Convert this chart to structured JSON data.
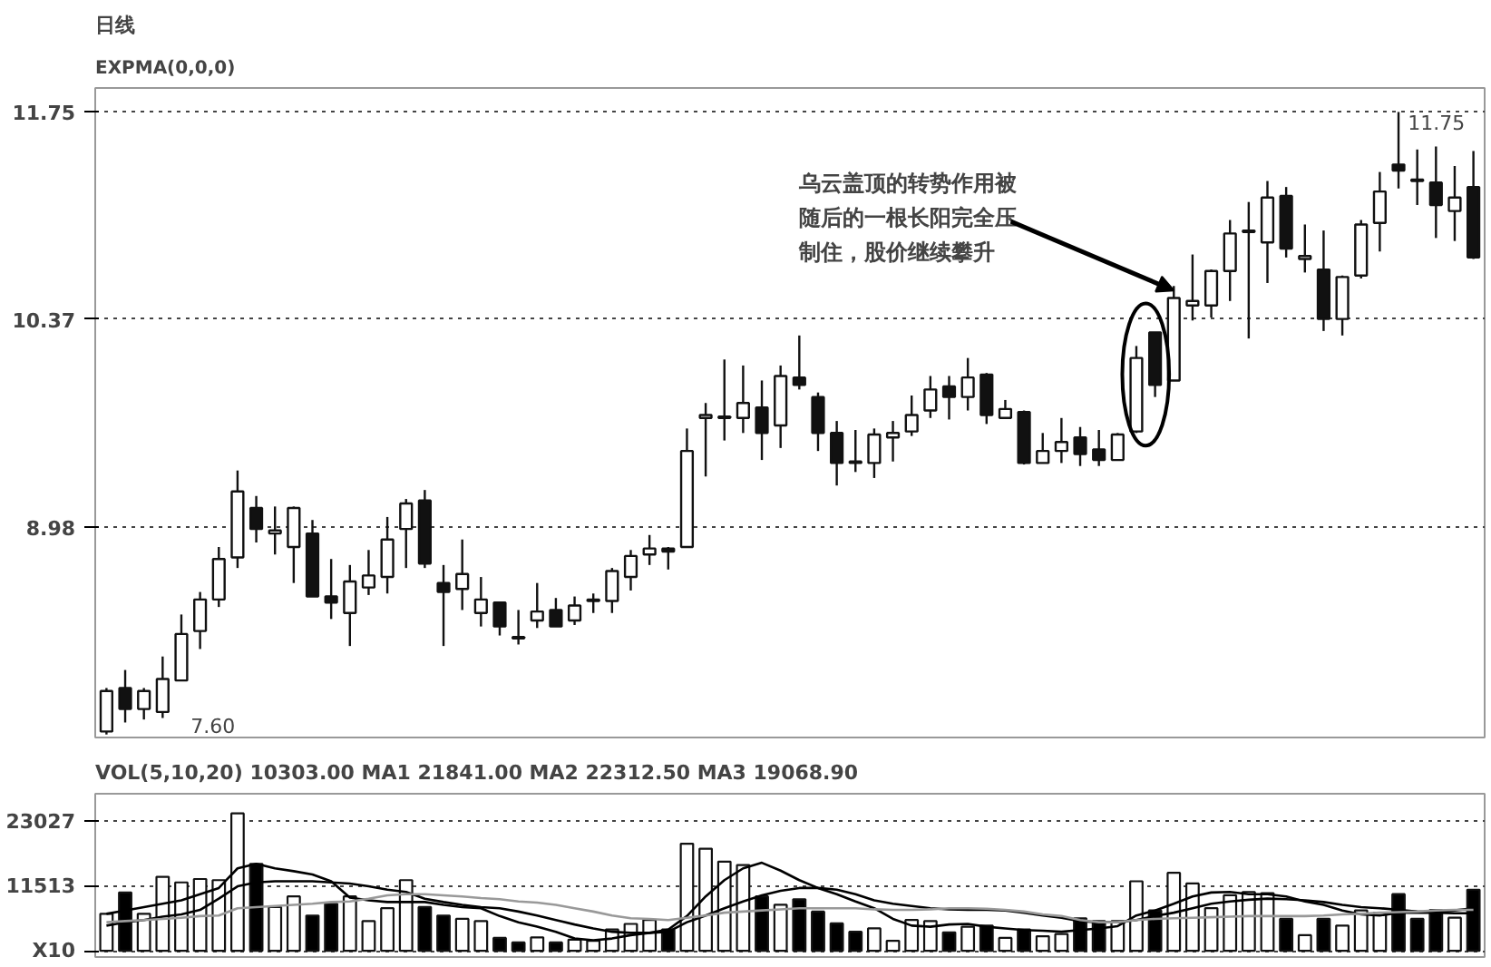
{
  "chart_data": [
    {
      "type": "candlestick",
      "title": "日线",
      "subtitle": "EXPMA(0,0,0)",
      "categories": [
        null,
        null,
        null,
        null,
        null,
        null,
        null,
        null,
        null,
        null,
        null,
        null,
        null,
        null,
        null,
        null,
        null,
        null,
        null,
        null,
        null,
        null,
        null,
        null,
        null,
        null,
        null,
        null,
        null,
        null,
        null,
        null,
        null,
        null,
        null,
        null,
        null,
        null,
        null,
        null,
        null,
        null,
        null,
        null,
        null,
        null,
        null,
        null,
        null,
        null,
        null,
        null,
        null,
        null,
        null,
        null,
        null,
        null,
        null,
        null,
        null,
        null,
        null,
        null,
        null,
        null,
        null,
        null,
        null,
        null,
        null,
        null,
        null,
        null
      ],
      "ohlc": [
        [
          7.62,
          7.91,
          7.6,
          7.89
        ],
        [
          7.91,
          8.03,
          7.68,
          7.77
        ],
        [
          7.77,
          7.91,
          7.7,
          7.89
        ],
        [
          7.75,
          8.12,
          7.71,
          7.97
        ],
        [
          7.96,
          8.4,
          7.96,
          8.27
        ],
        [
          8.29,
          8.55,
          8.17,
          8.5
        ],
        [
          8.5,
          8.85,
          8.45,
          8.77
        ],
        [
          8.78,
          9.36,
          8.71,
          9.22
        ],
        [
          9.11,
          9.19,
          8.88,
          8.97
        ],
        [
          8.94,
          9.12,
          8.8,
          8.96
        ],
        [
          8.85,
          9.12,
          8.61,
          9.11
        ],
        [
          8.94,
          9.03,
          8.52,
          8.52
        ],
        [
          8.52,
          8.77,
          8.37,
          8.48
        ],
        [
          8.41,
          8.73,
          8.19,
          8.62
        ],
        [
          8.58,
          8.83,
          8.53,
          8.66
        ],
        [
          8.65,
          9.05,
          8.54,
          8.9
        ],
        [
          8.97,
          9.17,
          8.71,
          9.14
        ],
        [
          9.16,
          9.23,
          8.71,
          8.74
        ],
        [
          8.61,
          8.73,
          8.19,
          8.55
        ],
        [
          8.57,
          8.9,
          8.43,
          8.67
        ],
        [
          8.41,
          8.65,
          8.32,
          8.5
        ],
        [
          8.48,
          8.48,
          8.26,
          8.32
        ],
        [
          8.25,
          8.43,
          8.2,
          8.24
        ],
        [
          8.36,
          8.61,
          8.31,
          8.42
        ],
        [
          8.43,
          8.51,
          8.32,
          8.32
        ],
        [
          8.36,
          8.52,
          8.33,
          8.46
        ],
        [
          8.49,
          8.54,
          8.41,
          8.5
        ],
        [
          8.49,
          8.71,
          8.41,
          8.69
        ],
        [
          8.65,
          8.83,
          8.56,
          8.79
        ],
        [
          8.8,
          8.93,
          8.73,
          8.84
        ],
        [
          8.84,
          8.85,
          8.7,
          8.82
        ],
        [
          8.85,
          9.64,
          8.85,
          9.49
        ],
        [
          9.71,
          9.81,
          9.32,
          9.73
        ],
        [
          9.71,
          10.1,
          9.56,
          9.72
        ],
        [
          9.71,
          10.06,
          9.61,
          9.81
        ],
        [
          9.78,
          9.96,
          9.43,
          9.61
        ],
        [
          9.66,
          10.06,
          9.51,
          9.99
        ],
        [
          9.98,
          10.26,
          9.9,
          9.93
        ],
        [
          9.85,
          9.88,
          9.49,
          9.61
        ],
        [
          9.61,
          9.69,
          9.26,
          9.41
        ],
        [
          9.41,
          9.63,
          9.35,
          9.42
        ],
        [
          9.41,
          9.64,
          9.31,
          9.6
        ],
        [
          9.58,
          9.69,
          9.42,
          9.61
        ],
        [
          9.62,
          9.86,
          9.59,
          9.73
        ],
        [
          9.76,
          9.99,
          9.71,
          9.9
        ],
        [
          9.92,
          9.99,
          9.7,
          9.85
        ],
        [
          9.85,
          10.11,
          9.76,
          9.98
        ],
        [
          10.0,
          10.01,
          9.67,
          9.73
        ],
        [
          9.71,
          9.83,
          9.71,
          9.77
        ],
        [
          9.75,
          9.76,
          9.4,
          9.41
        ],
        [
          9.41,
          9.61,
          9.41,
          9.49
        ],
        [
          9.49,
          9.71,
          9.41,
          9.55
        ],
        [
          9.58,
          9.65,
          9.39,
          9.47
        ],
        [
          9.5,
          9.63,
          9.39,
          9.43
        ],
        [
          9.43,
          9.61,
          9.43,
          9.6
        ],
        [
          9.62,
          10.19,
          9.61,
          10.11
        ],
        [
          10.28,
          10.28,
          9.85,
          9.93
        ],
        [
          9.96,
          10.59,
          9.96,
          10.51
        ],
        [
          10.46,
          10.8,
          10.36,
          10.49
        ],
        [
          10.46,
          10.7,
          10.38,
          10.69
        ],
        [
          10.69,
          11.03,
          10.49,
          10.94
        ],
        [
          10.95,
          11.15,
          10.24,
          10.96
        ],
        [
          10.88,
          11.29,
          10.61,
          11.18
        ],
        [
          11.19,
          11.25,
          10.78,
          10.84
        ],
        [
          10.77,
          11.0,
          10.68,
          10.79
        ],
        [
          10.7,
          10.96,
          10.29,
          10.37
        ],
        [
          10.37,
          10.66,
          10.26,
          10.65
        ],
        [
          10.66,
          11.03,
          10.64,
          11.0
        ],
        [
          11.01,
          11.35,
          10.82,
          11.22
        ],
        [
          11.4,
          11.75,
          11.24,
          11.36
        ],
        [
          11.29,
          11.5,
          11.13,
          11.3
        ],
        [
          11.28,
          11.52,
          10.91,
          11.13
        ],
        [
          11.09,
          11.39,
          10.89,
          11.18
        ],
        [
          11.25,
          11.49,
          10.77,
          10.78
        ]
      ],
      "ylim": [
        7.58,
        11.91
      ],
      "yticks": [
        8.98,
        10.37,
        11.75
      ],
      "grid": "y",
      "tick_labels": "y",
      "annotations": [
        "乌云盖顶的转势作用被随后的一根长阳完全压制住，股价继续攀升",
        "11.75",
        "7.60"
      ]
    },
    {
      "type": "bar",
      "title": "VOL(5,10,20)  10303.00  MA1  21841.00  MA2  22312.50  MA3  19068.90",
      "categories": [
        null,
        null,
        null,
        null,
        null,
        null,
        null,
        null,
        null,
        null,
        null,
        null,
        null,
        null,
        null,
        null,
        null,
        null,
        null,
        null,
        null,
        null,
        null,
        null,
        null,
        null,
        null,
        null,
        null,
        null,
        null,
        null,
        null,
        null,
        null,
        null,
        null,
        null,
        null,
        null,
        null,
        null,
        null,
        null,
        null,
        null,
        null,
        null,
        null,
        null,
        null,
        null,
        null,
        null,
        null,
        null,
        null,
        null,
        null,
        null,
        null,
        null,
        null,
        null,
        null,
        null,
        null,
        null,
        null,
        null,
        null,
        null,
        null,
        null
      ],
      "series": [
        {
          "type": "bar",
          "values": [
            6600,
            10400,
            6600,
            13200,
            12200,
            12800,
            12600,
            24500,
            15500,
            7800,
            9700,
            6300,
            8400,
            9700,
            5300,
            7600,
            12600,
            7800,
            6300,
            5700,
            5300,
            2300,
            1500,
            2400,
            1500,
            2000,
            1800,
            3800,
            4800,
            5500,
            3800,
            19100,
            18200,
            15900,
            15300,
            9700,
            8200,
            9200,
            7000,
            4900,
            3400,
            4000,
            1800,
            5500,
            5300,
            3300,
            4300,
            4500,
            2300,
            3800,
            2600,
            3000,
            5800,
            5300,
            5300,
            12400,
            7200,
            13900,
            12000,
            7600,
            9900,
            10500,
            10300,
            5700,
            2800,
            5700,
            4500,
            7200,
            6800,
            10100,
            5700,
            7300,
            5900,
            10900
          ],
          "colors": [
            "#ffffff",
            "#000000",
            "#ffffff",
            "#ffffff",
            "#ffffff",
            "#ffffff",
            "#ffffff",
            "#ffffff",
            "#000000",
            "#ffffff",
            "#ffffff",
            "#000000",
            "#000000",
            "#ffffff",
            "#ffffff",
            "#ffffff",
            "#ffffff",
            "#000000",
            "#000000",
            "#ffffff",
            "#ffffff",
            "#000000",
            "#000000",
            "#ffffff",
            "#000000",
            "#ffffff",
            "#ffffff",
            "#ffffff",
            "#ffffff",
            "#ffffff",
            "#000000",
            "#ffffff",
            "#ffffff",
            "#ffffff",
            "#ffffff",
            "#000000",
            "#ffffff",
            "#000000",
            "#000000",
            "#000000",
            "#000000",
            "#ffffff",
            "#ffffff",
            "#ffffff",
            "#ffffff",
            "#000000",
            "#ffffff",
            "#000000",
            "#ffffff",
            "#000000",
            "#ffffff",
            "#ffffff",
            "#000000",
            "#000000",
            "#ffffff",
            "#ffffff",
            "#000000",
            "#ffffff",
            "#ffffff",
            "#ffffff",
            "#ffffff",
            "#ffffff",
            "#ffffff",
            "#000000",
            "#ffffff",
            "#000000",
            "#ffffff",
            "#ffffff",
            "#ffffff",
            "#000000",
            "#000000",
            "#000000",
            "#ffffff",
            "#000000"
          ]
        },
        {
          "type": "line",
          "color": "#000000",
          "values": [
            6600,
            7200,
            7800,
            8400,
            9000,
            10100,
            11200,
            14700,
            15500,
            14700,
            14200,
            13600,
            12400,
            9500,
            9000,
            8700,
            8700,
            8700,
            8200,
            7800,
            7600,
            6200,
            5100,
            4300,
            3400,
            2200,
            1900,
            2200,
            2800,
            3200,
            3800,
            6200,
            9700,
            12600,
            14700,
            15700,
            14300,
            12600,
            11200,
            10100,
            8800,
            7600,
            5700,
            4500,
            4300,
            4700,
            4800,
            4300,
            4000,
            3700,
            3600,
            3400,
            3700,
            4000,
            4400,
            6300,
            7200,
            8400,
            9700,
            10400,
            10500,
            10100,
            10100,
            9700,
            8800,
            8200,
            7200,
            6500,
            6300,
            6800,
            6800,
            6800,
            7200,
            7600
          ]
        },
        {
          "type": "line",
          "color": "#000000",
          "values": [
            4500,
            5100,
            5500,
            6100,
            6500,
            7300,
            9300,
            11500,
            12200,
            12400,
            12400,
            12400,
            12200,
            12000,
            11500,
            10900,
            10500,
            9300,
            8700,
            8200,
            7800,
            7600,
            7000,
            6300,
            5500,
            4700,
            4000,
            3400,
            3200,
            3200,
            3400,
            5100,
            6300,
            7600,
            8800,
            9900,
            10700,
            11200,
            11200,
            10900,
            10100,
            9000,
            8400,
            8000,
            7600,
            7400,
            7300,
            7300,
            7200,
            6800,
            6300,
            5900,
            5300,
            5100,
            5100,
            5500,
            6200,
            6800,
            7600,
            8400,
            8800,
            9100,
            9300,
            9200,
            9000,
            8700,
            8200,
            7800,
            7600,
            7300,
            7000,
            6800,
            6700,
            6700
          ]
        },
        {
          "type": "line",
          "color": "#999999",
          "values": [
            5100,
            5300,
            5500,
            5700,
            5900,
            6200,
            6300,
            7600,
            7800,
            8000,
            8200,
            8400,
            8700,
            8800,
            9300,
            9900,
            10100,
            10100,
            9900,
            9700,
            9400,
            9200,
            8800,
            8600,
            8200,
            7600,
            7000,
            6300,
            5800,
            5700,
            5500,
            5900,
            6300,
            6800,
            7000,
            7200,
            7400,
            7600,
            7600,
            7600,
            7600,
            7400,
            7300,
            7300,
            7400,
            7600,
            7600,
            7500,
            7300,
            7000,
            6500,
            6200,
            5500,
            5100,
            5100,
            5500,
            5700,
            5800,
            5900,
            6000,
            6100,
            6200,
            6200,
            6200,
            6200,
            6300,
            6500,
            6600,
            6800,
            6900,
            7000,
            7200,
            7300,
            7300
          ]
        }
      ],
      "ylim": [
        -1100,
        28000
      ],
      "yticks": [
        {
          "value": 0,
          "label": "X10"
        },
        11513,
        23027
      ],
      "grid": "y",
      "tick_labels": "y"
    }
  ]
}
